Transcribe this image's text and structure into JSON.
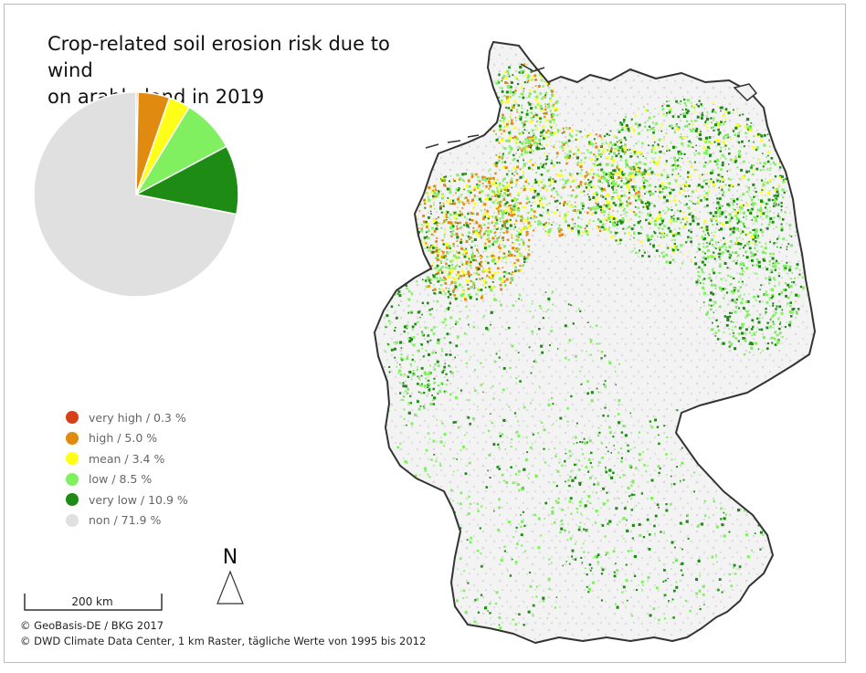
{
  "title_line1": "Crop-related soil erosion risk due to wind",
  "title_line2": "on arable land in 2019",
  "legend": [
    {
      "label": "very high / 0.3 %",
      "value": 0.3,
      "color": "#d8401a"
    },
    {
      "label": "high / 5.0 %",
      "value": 5.0,
      "color": "#e08a10"
    },
    {
      "label": "mean / 3.4 %",
      "value": 3.4,
      "color": "#ffff1a"
    },
    {
      "label": "low / 8.5 %",
      "value": 8.5,
      "color": "#80f060"
    },
    {
      "label": "very low / 10.9 %",
      "value": 10.9,
      "color": "#1e8c14"
    },
    {
      "label": "non / 71.9 %",
      "value": 71.9,
      "color": "#e0e0e0"
    }
  ],
  "chart_data": {
    "type": "pie",
    "categories": [
      "very high",
      "high",
      "mean",
      "low",
      "very low",
      "non"
    ],
    "values": [
      0.3,
      5.0,
      3.4,
      8.5,
      10.9,
      71.9
    ],
    "colors": [
      "#d8401a",
      "#e08a10",
      "#ffff1a",
      "#80f060",
      "#1e8c14",
      "#e0e0e0"
    ],
    "title": "Crop-related soil erosion risk due to wind on arable land in 2019"
  },
  "north_label": "N",
  "scale_label": "200 km",
  "credit_1": "© GeoBasis-DE / BKG 2017",
  "credit_2": "© DWD Climate Data Center, 1 km Raster, tägliche Werte von 1995 bis 2012",
  "map": {
    "country": "Germany",
    "fill_color": "#f4f4f4",
    "outline_color": "#333333"
  }
}
